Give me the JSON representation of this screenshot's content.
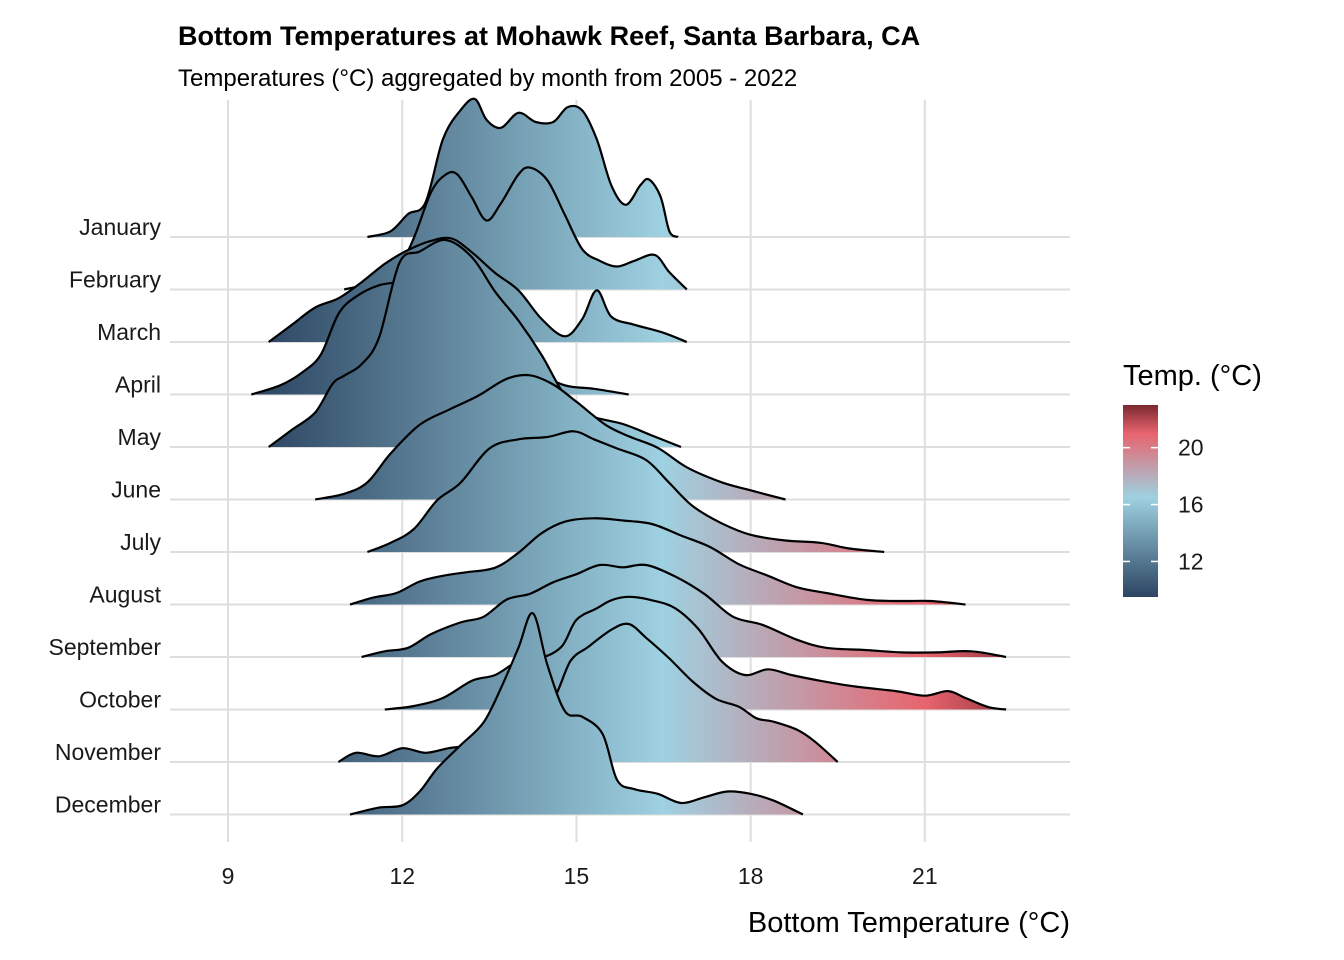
{
  "chart_data": {
    "type": "ridgeline",
    "title": "Bottom Temperatures at Mohawk Reef, Santa Barbara, CA",
    "subtitle": "Temperatures (°C) aggregated by month from 2005 - 2022",
    "xlabel": "Bottom Temperature (°C)",
    "ylabel": "",
    "xlim": [
      8,
      23.5
    ],
    "x_ticks": [
      9,
      12,
      15,
      18,
      21
    ],
    "x_tick_labels": [
      "9",
      "12",
      "15",
      "18",
      "21"
    ],
    "grid": true,
    "legend": {
      "title": "Temp. (°C)",
      "position": "right",
      "range": [
        9.5,
        23
      ],
      "ticks": [
        12,
        16,
        20
      ],
      "tick_labels": [
        "12",
        "16",
        "20"
      ]
    },
    "color_scale": [
      {
        "value": 9.5,
        "color": "#2c4562"
      },
      {
        "value": 16.5,
        "color": "#9ed1e1"
      },
      {
        "value": 21,
        "color": "#e8646e"
      },
      {
        "value": 23,
        "color": "#7a2930"
      }
    ],
    "outline_color": "#000000",
    "series": [
      {
        "name": "January",
        "density": [
          [
            11.4,
            0
          ],
          [
            11.8,
            0.05
          ],
          [
            12.1,
            0.2
          ],
          [
            12.4,
            0.3
          ],
          [
            12.7,
            0.85
          ],
          [
            13.0,
            1.1
          ],
          [
            13.25,
            1.2
          ],
          [
            13.45,
            1.02
          ],
          [
            13.7,
            0.95
          ],
          [
            14.0,
            1.08
          ],
          [
            14.3,
            1.0
          ],
          [
            14.6,
            1.0
          ],
          [
            14.85,
            1.13
          ],
          [
            15.1,
            1.1
          ],
          [
            15.35,
            0.85
          ],
          [
            15.6,
            0.45
          ],
          [
            15.85,
            0.28
          ],
          [
            16.1,
            0.45
          ],
          [
            16.25,
            0.5
          ],
          [
            16.45,
            0.35
          ],
          [
            16.6,
            0.05
          ],
          [
            16.75,
            0
          ]
        ]
      },
      {
        "name": "February",
        "density": [
          [
            11.0,
            0
          ],
          [
            11.6,
            0.07
          ],
          [
            11.9,
            0.15
          ],
          [
            12.2,
            0.45
          ],
          [
            12.5,
            0.85
          ],
          [
            12.75,
            1.0
          ],
          [
            12.95,
            1.0
          ],
          [
            13.2,
            0.8
          ],
          [
            13.45,
            0.6
          ],
          [
            13.7,
            0.75
          ],
          [
            14.0,
            1.0
          ],
          [
            14.2,
            1.06
          ],
          [
            14.5,
            0.95
          ],
          [
            14.8,
            0.65
          ],
          [
            15.1,
            0.35
          ],
          [
            15.4,
            0.25
          ],
          [
            15.7,
            0.2
          ],
          [
            16.0,
            0.25
          ],
          [
            16.35,
            0.3
          ],
          [
            16.6,
            0.15
          ],
          [
            16.9,
            0
          ]
        ]
      },
      {
        "name": "March",
        "density": [
          [
            9.7,
            0
          ],
          [
            10.1,
            0.15
          ],
          [
            10.5,
            0.3
          ],
          [
            10.9,
            0.38
          ],
          [
            11.3,
            0.52
          ],
          [
            11.7,
            0.68
          ],
          [
            12.1,
            0.8
          ],
          [
            12.5,
            0.88
          ],
          [
            12.85,
            0.9
          ],
          [
            13.2,
            0.78
          ],
          [
            13.6,
            0.6
          ],
          [
            14.0,
            0.45
          ],
          [
            14.4,
            0.2
          ],
          [
            14.8,
            0.05
          ],
          [
            15.1,
            0.2
          ],
          [
            15.35,
            0.45
          ],
          [
            15.6,
            0.22
          ],
          [
            16.0,
            0.15
          ],
          [
            16.5,
            0.08
          ],
          [
            16.9,
            0
          ]
        ]
      },
      {
        "name": "April",
        "density": [
          [
            9.4,
            0
          ],
          [
            9.9,
            0.08
          ],
          [
            10.3,
            0.2
          ],
          [
            10.6,
            0.35
          ],
          [
            10.9,
            0.7
          ],
          [
            11.2,
            0.85
          ],
          [
            11.6,
            0.95
          ],
          [
            12.0,
            0.98
          ],
          [
            12.25,
            1.0
          ],
          [
            12.55,
            0.9
          ],
          [
            12.85,
            0.8
          ],
          [
            13.15,
            0.55
          ],
          [
            13.5,
            0.42
          ],
          [
            13.9,
            0.35
          ],
          [
            14.3,
            0.2
          ],
          [
            14.8,
            0.08
          ],
          [
            15.3,
            0.05
          ],
          [
            15.9,
            0
          ]
        ]
      },
      {
        "name": "May",
        "density": [
          [
            9.7,
            0
          ],
          [
            10.1,
            0.15
          ],
          [
            10.5,
            0.3
          ],
          [
            10.8,
            0.55
          ],
          [
            11.0,
            0.62
          ],
          [
            11.3,
            0.72
          ],
          [
            11.6,
            0.95
          ],
          [
            11.95,
            1.6
          ],
          [
            12.3,
            1.7
          ],
          [
            12.75,
            1.8
          ],
          [
            13.2,
            1.65
          ],
          [
            13.6,
            1.35
          ],
          [
            14.0,
            1.1
          ],
          [
            14.4,
            0.8
          ],
          [
            14.8,
            0.45
          ],
          [
            15.2,
            0.28
          ],
          [
            15.8,
            0.2
          ],
          [
            16.3,
            0.1
          ],
          [
            16.8,
            0
          ]
        ]
      },
      {
        "name": "June",
        "density": [
          [
            10.5,
            0
          ],
          [
            11.0,
            0.05
          ],
          [
            11.4,
            0.15
          ],
          [
            11.8,
            0.4
          ],
          [
            12.3,
            0.65
          ],
          [
            12.8,
            0.78
          ],
          [
            13.3,
            0.9
          ],
          [
            13.8,
            1.05
          ],
          [
            14.2,
            1.08
          ],
          [
            14.6,
            1.0
          ],
          [
            15.0,
            0.85
          ],
          [
            15.5,
            0.65
          ],
          [
            15.9,
            0.55
          ],
          [
            16.4,
            0.45
          ],
          [
            16.9,
            0.28
          ],
          [
            17.5,
            0.15
          ],
          [
            18.0,
            0.08
          ],
          [
            18.6,
            0
          ]
        ]
      },
      {
        "name": "July",
        "density": [
          [
            11.4,
            0
          ],
          [
            11.8,
            0.08
          ],
          [
            12.2,
            0.2
          ],
          [
            12.6,
            0.45
          ],
          [
            13.0,
            0.6
          ],
          [
            13.5,
            0.9
          ],
          [
            14.0,
            0.98
          ],
          [
            14.5,
            1.0
          ],
          [
            14.95,
            1.05
          ],
          [
            15.3,
            0.98
          ],
          [
            15.7,
            0.9
          ],
          [
            16.2,
            0.8
          ],
          [
            16.6,
            0.6
          ],
          [
            17.0,
            0.4
          ],
          [
            17.5,
            0.25
          ],
          [
            18.0,
            0.15
          ],
          [
            18.6,
            0.1
          ],
          [
            19.2,
            0.08
          ],
          [
            19.7,
            0.03
          ],
          [
            20.3,
            0
          ]
        ]
      },
      {
        "name": "August",
        "density": [
          [
            11.1,
            0
          ],
          [
            11.5,
            0.06
          ],
          [
            11.9,
            0.1
          ],
          [
            12.3,
            0.2
          ],
          [
            12.7,
            0.25
          ],
          [
            13.1,
            0.28
          ],
          [
            13.6,
            0.32
          ],
          [
            14.0,
            0.45
          ],
          [
            14.4,
            0.62
          ],
          [
            14.8,
            0.72
          ],
          [
            15.3,
            0.75
          ],
          [
            15.8,
            0.73
          ],
          [
            16.3,
            0.7
          ],
          [
            16.8,
            0.6
          ],
          [
            17.3,
            0.5
          ],
          [
            17.8,
            0.35
          ],
          [
            18.3,
            0.25
          ],
          [
            18.8,
            0.15
          ],
          [
            19.3,
            0.1
          ],
          [
            20.0,
            0.04
          ],
          [
            20.6,
            0.03
          ],
          [
            21.1,
            0.03
          ],
          [
            21.7,
            0
          ]
        ]
      },
      {
        "name": "September",
        "density": [
          [
            11.3,
            0
          ],
          [
            11.7,
            0.05
          ],
          [
            12.1,
            0.08
          ],
          [
            12.5,
            0.2
          ],
          [
            13.0,
            0.3
          ],
          [
            13.4,
            0.35
          ],
          [
            13.8,
            0.5
          ],
          [
            14.2,
            0.55
          ],
          [
            14.6,
            0.65
          ],
          [
            15.0,
            0.72
          ],
          [
            15.4,
            0.8
          ],
          [
            15.8,
            0.78
          ],
          [
            16.2,
            0.8
          ],
          [
            16.7,
            0.7
          ],
          [
            17.2,
            0.55
          ],
          [
            17.7,
            0.35
          ],
          [
            18.2,
            0.28
          ],
          [
            18.8,
            0.15
          ],
          [
            19.3,
            0.08
          ],
          [
            20.0,
            0.06
          ],
          [
            20.6,
            0.04
          ],
          [
            21.2,
            0.04
          ],
          [
            21.8,
            0.05
          ],
          [
            22.4,
            0
          ]
        ]
      },
      {
        "name": "October",
        "density": [
          [
            11.7,
            0
          ],
          [
            12.2,
            0.03
          ],
          [
            12.7,
            0.1
          ],
          [
            13.2,
            0.25
          ],
          [
            13.6,
            0.3
          ],
          [
            14.0,
            0.42
          ],
          [
            14.4,
            0.45
          ],
          [
            14.75,
            0.55
          ],
          [
            15.0,
            0.78
          ],
          [
            15.35,
            0.88
          ],
          [
            15.6,
            0.95
          ],
          [
            15.9,
            0.98
          ],
          [
            16.3,
            0.95
          ],
          [
            16.7,
            0.88
          ],
          [
            17.1,
            0.7
          ],
          [
            17.5,
            0.42
          ],
          [
            17.9,
            0.3
          ],
          [
            18.3,
            0.35
          ],
          [
            18.7,
            0.3
          ],
          [
            19.2,
            0.25
          ],
          [
            19.8,
            0.2
          ],
          [
            20.5,
            0.16
          ],
          [
            21.0,
            0.12
          ],
          [
            21.4,
            0.16
          ],
          [
            21.7,
            0.1
          ],
          [
            22.1,
            0.02
          ],
          [
            22.4,
            0
          ]
        ]
      },
      {
        "name": "November",
        "density": [
          [
            10.9,
            0
          ],
          [
            11.2,
            0.08
          ],
          [
            11.6,
            0.05
          ],
          [
            12.0,
            0.12
          ],
          [
            12.4,
            0.08
          ],
          [
            12.8,
            0.12
          ],
          [
            13.2,
            0.15
          ],
          [
            13.6,
            0.22
          ],
          [
            14.0,
            0.45
          ],
          [
            14.3,
            0.58
          ],
          [
            14.6,
            0.55
          ],
          [
            14.9,
            0.88
          ],
          [
            15.2,
            1.0
          ],
          [
            15.6,
            1.15
          ],
          [
            15.9,
            1.2
          ],
          [
            16.2,
            1.08
          ],
          [
            16.6,
            0.9
          ],
          [
            17.0,
            0.7
          ],
          [
            17.4,
            0.55
          ],
          [
            17.8,
            0.48
          ],
          [
            18.1,
            0.38
          ],
          [
            18.4,
            0.35
          ],
          [
            18.8,
            0.28
          ],
          [
            19.1,
            0.18
          ],
          [
            19.5,
            0
          ]
        ]
      },
      {
        "name": "December",
        "density": [
          [
            11.1,
            0
          ],
          [
            11.6,
            0.06
          ],
          [
            12.0,
            0.08
          ],
          [
            12.3,
            0.2
          ],
          [
            12.6,
            0.4
          ],
          [
            13.0,
            0.6
          ],
          [
            13.4,
            0.8
          ],
          [
            13.7,
            1.1
          ],
          [
            14.0,
            1.45
          ],
          [
            14.25,
            1.75
          ],
          [
            14.5,
            1.3
          ],
          [
            14.8,
            0.9
          ],
          [
            15.1,
            0.85
          ],
          [
            15.45,
            0.7
          ],
          [
            15.7,
            0.3
          ],
          [
            16.0,
            0.22
          ],
          [
            16.4,
            0.18
          ],
          [
            16.8,
            0.1
          ],
          [
            17.2,
            0.15
          ],
          [
            17.6,
            0.2
          ],
          [
            18.0,
            0.18
          ],
          [
            18.4,
            0.12
          ],
          [
            18.9,
            0
          ]
        ]
      }
    ]
  }
}
